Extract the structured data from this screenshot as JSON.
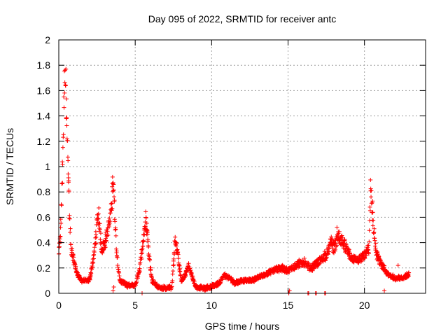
{
  "chart_data": {
    "type": "scatter",
    "title": "Day 095 of 2022, SRMTID for receiver antc",
    "xlabel": "GPS time / hours",
    "ylabel": "SRMTID / TECUs",
    "xlim": [
      0,
      24
    ],
    "ylim": [
      0,
      2
    ],
    "x_ticks": [
      0,
      5,
      10,
      15,
      20
    ],
    "x_tick_labels": [
      "0",
      "5",
      "10",
      "15",
      "20"
    ],
    "y_ticks": [
      0,
      0.2,
      0.4,
      0.6,
      0.8,
      1,
      1.2,
      1.4,
      1.6,
      1.8,
      2
    ],
    "y_tick_labels": [
      "0",
      "0.2",
      "0.4",
      "0.6",
      "0.8",
      "1",
      "1.2",
      "1.4",
      "1.6",
      "1.8",
      "2"
    ],
    "grid": true,
    "marker": "+",
    "color": "#ff0000",
    "series": [
      {
        "name": "SRMTID",
        "profile": [
          [
            0.0,
            0.3
          ],
          [
            0.1,
            0.45
          ],
          [
            0.2,
            0.8
          ],
          [
            0.3,
            1.3
          ],
          [
            0.4,
            1.85
          ],
          [
            0.5,
            1.5
          ],
          [
            0.6,
            1.0
          ],
          [
            0.7,
            0.6
          ],
          [
            0.8,
            0.35
          ],
          [
            1.0,
            0.25
          ],
          [
            1.2,
            0.15
          ],
          [
            1.5,
            0.1
          ],
          [
            2.0,
            0.1
          ],
          [
            2.3,
            0.3
          ],
          [
            2.5,
            0.55
          ],
          [
            2.6,
            0.6
          ],
          [
            2.8,
            0.35
          ],
          [
            3.0,
            0.4
          ],
          [
            3.2,
            0.5
          ],
          [
            3.4,
            0.6
          ],
          [
            3.55,
            0.9
          ],
          [
            3.65,
            0.65
          ],
          [
            3.8,
            0.3
          ],
          [
            4.0,
            0.1
          ],
          [
            4.5,
            0.06
          ],
          [
            5.0,
            0.06
          ],
          [
            5.3,
            0.2
          ],
          [
            5.5,
            0.4
          ],
          [
            5.7,
            0.6
          ],
          [
            5.9,
            0.3
          ],
          [
            6.1,
            0.1
          ],
          [
            6.5,
            0.05
          ],
          [
            7.0,
            0.04
          ],
          [
            7.4,
            0.05
          ],
          [
            7.6,
            0.42
          ],
          [
            7.8,
            0.3
          ],
          [
            8.0,
            0.1
          ],
          [
            8.3,
            0.15
          ],
          [
            8.5,
            0.22
          ],
          [
            8.8,
            0.1
          ],
          [
            9.0,
            0.05
          ],
          [
            9.5,
            0.04
          ],
          [
            10.0,
            0.05
          ],
          [
            10.5,
            0.08
          ],
          [
            10.8,
            0.14
          ],
          [
            11.2,
            0.12
          ],
          [
            11.5,
            0.08
          ],
          [
            12.0,
            0.1
          ],
          [
            12.5,
            0.1
          ],
          [
            13.0,
            0.12
          ],
          [
            13.5,
            0.15
          ],
          [
            14.0,
            0.18
          ],
          [
            14.5,
            0.2
          ],
          [
            15.0,
            0.18
          ],
          [
            15.5,
            0.22
          ],
          [
            16.0,
            0.25
          ],
          [
            16.5,
            0.2
          ],
          [
            17.0,
            0.25
          ],
          [
            17.5,
            0.3
          ],
          [
            17.8,
            0.4
          ],
          [
            18.0,
            0.35
          ],
          [
            18.3,
            0.45
          ],
          [
            18.6,
            0.4
          ],
          [
            19.0,
            0.3
          ],
          [
            19.5,
            0.25
          ],
          [
            20.0,
            0.3
          ],
          [
            20.3,
            0.35
          ],
          [
            20.4,
            0.85
          ],
          [
            20.6,
            0.5
          ],
          [
            20.8,
            0.3
          ],
          [
            21.0,
            0.25
          ],
          [
            21.5,
            0.15
          ],
          [
            22.0,
            0.12
          ],
          [
            22.5,
            0.12
          ],
          [
            22.9,
            0.15
          ]
        ],
        "extra_points": [
          [
            3.55,
            0.02
          ],
          [
            3.6,
            0.05
          ],
          [
            5.45,
            0.0
          ],
          [
            15.05,
            0.0
          ],
          [
            15.1,
            0.02
          ],
          [
            16.3,
            0.0
          ],
          [
            16.35,
            0.0
          ],
          [
            16.8,
            0.0
          ],
          [
            16.85,
            0.0
          ],
          [
            17.4,
            0.0
          ],
          [
            17.45,
            0.0
          ],
          [
            18.2,
            0.52
          ],
          [
            21.3,
            0.02
          ],
          [
            22.2,
            0.22
          ]
        ]
      }
    ]
  }
}
